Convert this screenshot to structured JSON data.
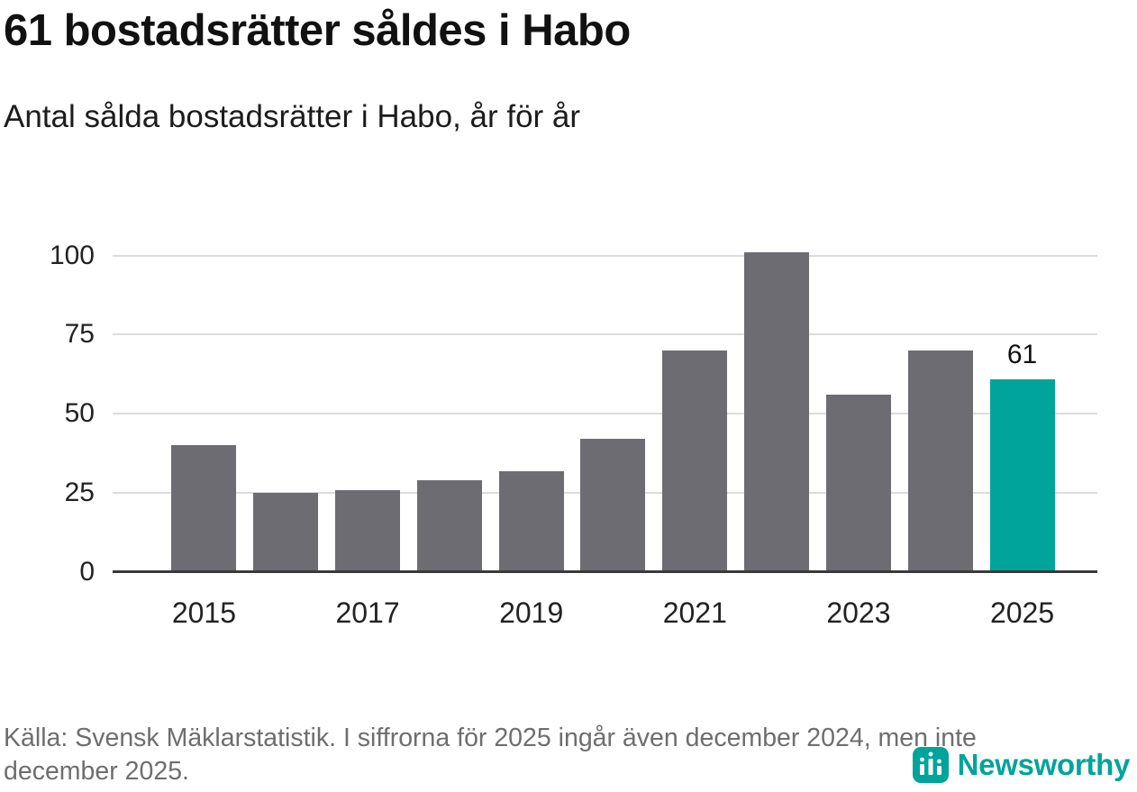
{
  "header": {
    "title": "61 bostadsrätter såldes i Habo",
    "subtitle": "Antal sålda bostadsrätter i Habo, år för år"
  },
  "chart_data": {
    "type": "bar",
    "categories": [
      "2015",
      "2016",
      "2017",
      "2018",
      "2019",
      "2020",
      "2021",
      "2022",
      "2023",
      "2024",
      "2025"
    ],
    "values": [
      40,
      25,
      26,
      29,
      32,
      42,
      70,
      101,
      56,
      70,
      61
    ],
    "title": "61 bostadsrätter såldes i Habo",
    "subtitle": "Antal sålda bostadsrätter i Habo, år för år",
    "xlabel": "",
    "ylabel": "",
    "ylim": [
      0,
      105
    ],
    "y_ticks": [
      0,
      25,
      50,
      75,
      100
    ],
    "x_tick_labels": [
      "2015",
      "2017",
      "2019",
      "2021",
      "2023",
      "2025"
    ],
    "grid": true,
    "legend": false,
    "bar_color": "#6e6c73",
    "highlight_color": "#00a49a",
    "highlight_index": 10,
    "value_label": {
      "index": 10,
      "text": "61"
    }
  },
  "footer": {
    "source": "Källa: Svensk Mäklarstatistik. I siffrorna för 2025 ingår även december 2024, men inte december 2025.",
    "brand": "Newsworthy",
    "brand_color": "#00a49a"
  }
}
